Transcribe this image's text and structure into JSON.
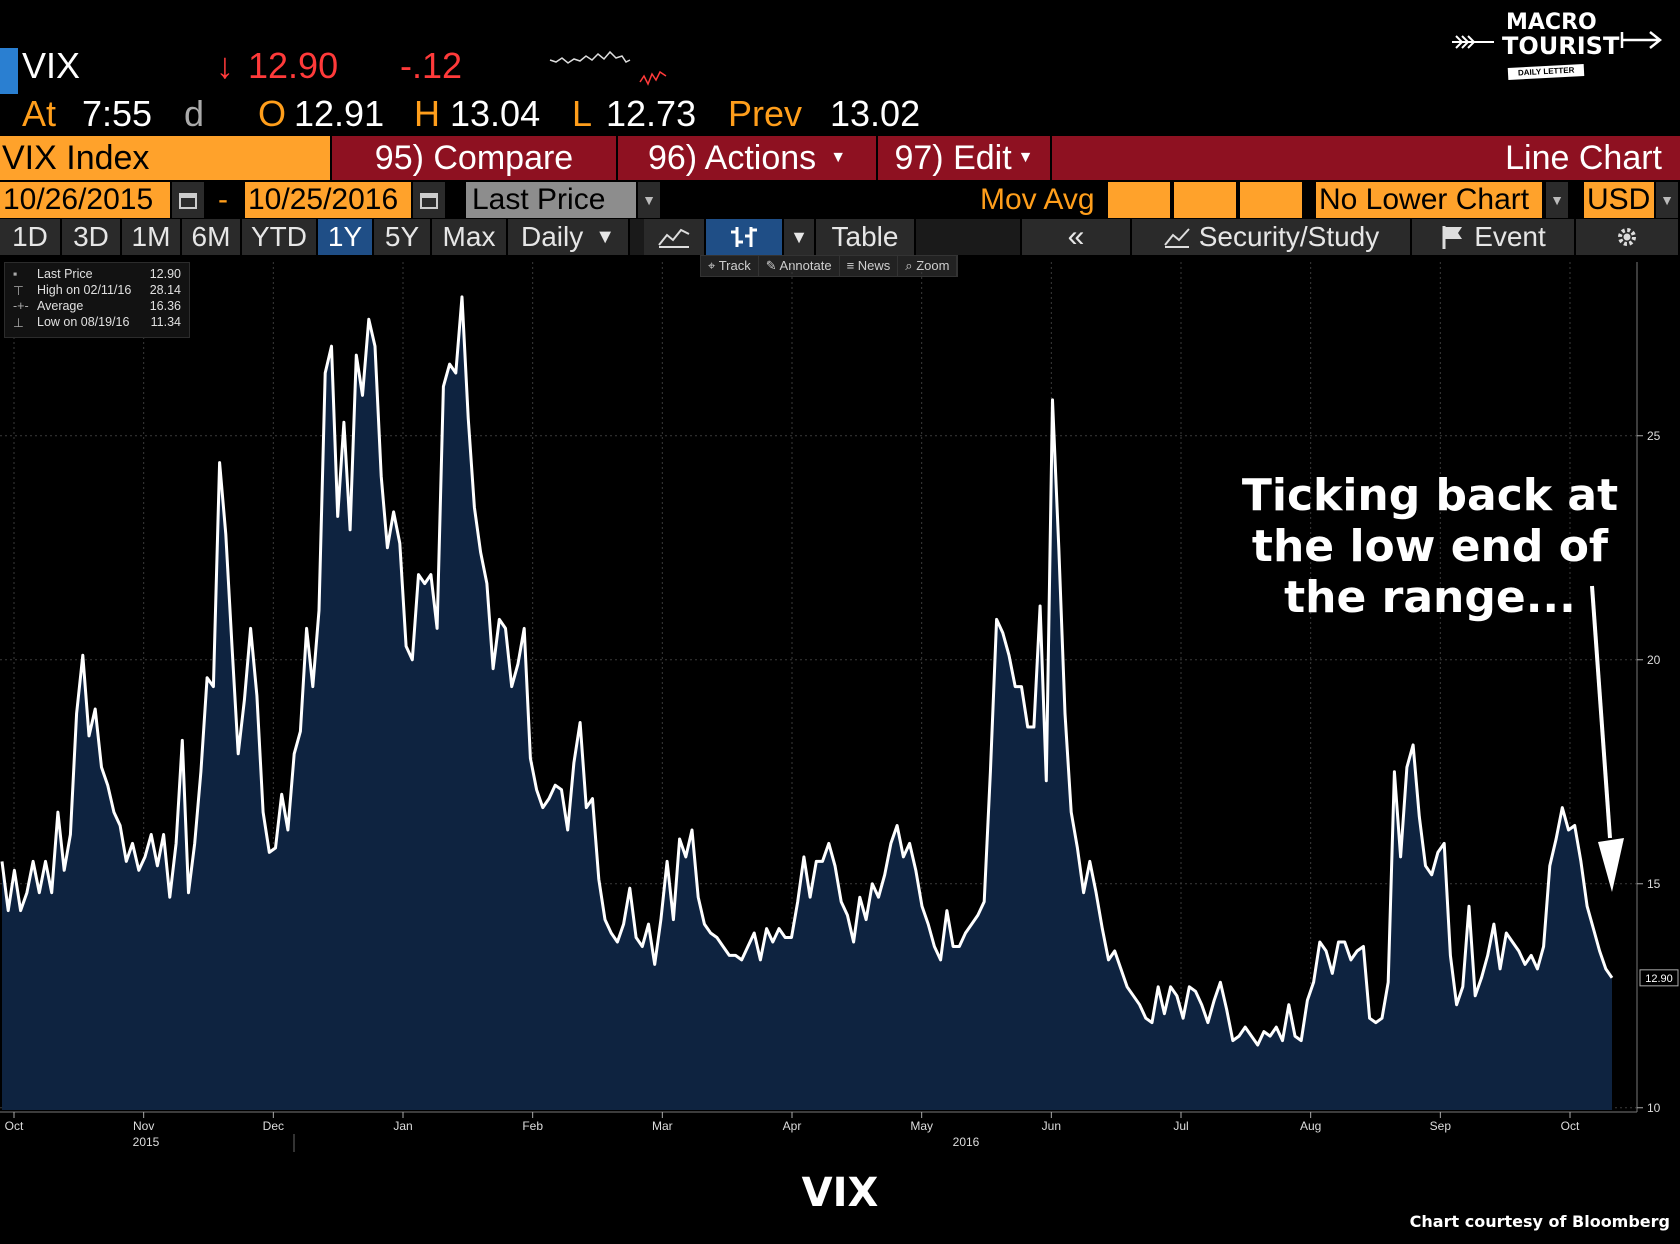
{
  "header": {
    "ticker": "VIX",
    "arrow": "↓",
    "last": "12.90",
    "change": "-.12",
    "time_label": "At",
    "time": "7:55",
    "time_unit": "d",
    "open_label": "O",
    "open": "12.91",
    "high_label": "H",
    "high": "13.04",
    "low_label": "L",
    "low": "12.73",
    "prev_label": "Prev",
    "prev": "13.02"
  },
  "logo": {
    "line1": "MACRO",
    "line2": "TOURIST",
    "line3": "DAILY LETTER"
  },
  "toolbar": {
    "security": "VIX Index",
    "compare": "95) Compare",
    "actions": "96) Actions",
    "edit": "97) Edit",
    "chart_type": "Line Chart",
    "start_date": "10/26/2015",
    "dash": "-",
    "end_date": "10/25/2016",
    "field": "Last Price",
    "mov_avg": "Mov Avg",
    "lower_chart": "No Lower Chart",
    "currency": "USD",
    "ranges": [
      "1D",
      "3D",
      "1M",
      "6M",
      "YTD",
      "1Y",
      "5Y",
      "Max"
    ],
    "active_range": "1Y",
    "frequency": "Daily",
    "table": "Table",
    "security_study": "Security/Study",
    "event": "Event",
    "tools": [
      "Track",
      "Annotate",
      "News",
      "Zoom"
    ]
  },
  "legend": {
    "rows": [
      {
        "label": "Last Price",
        "value": "12.90"
      },
      {
        "label": "High on 02/11/16",
        "value": "28.14"
      },
      {
        "label": "Average",
        "value": "16.36"
      },
      {
        "label": "Low on 08/19/16",
        "value": "11.34"
      }
    ]
  },
  "annotation": {
    "lines": [
      "Ticking back at",
      "the low end of",
      "the range..."
    ]
  },
  "footer": {
    "title": "VIX",
    "credit": "Chart courtesy of Bloomberg"
  },
  "chart_data": {
    "type": "area",
    "title": "VIX",
    "x_tick_labels": [
      "Oct",
      "Nov",
      "Dec",
      "Jan",
      "Feb",
      "Mar",
      "Apr",
      "May",
      "Jun",
      "Jul",
      "Aug",
      "Sep",
      "Oct"
    ],
    "x_year_labels": [
      "2015",
      "2016"
    ],
    "y_ticks": [
      10,
      15,
      20,
      25
    ],
    "ylim": [
      9.95,
      28.7
    ],
    "last_value_label": "12.90",
    "colors": {
      "line": "#ffffff",
      "fill": "#0e2340",
      "grid": "#3a3a3a"
    },
    "series": [
      {
        "name": "Last Price",
        "values": [
          15.5,
          14.4,
          15.3,
          14.4,
          14.8,
          15.5,
          14.8,
          15.5,
          14.8,
          16.6,
          15.3,
          16.1,
          18.8,
          20.1,
          18.3,
          18.9,
          17.6,
          17.2,
          16.6,
          16.3,
          15.5,
          15.9,
          15.3,
          15.6,
          16.1,
          15.4,
          16.1,
          14.7,
          15.9,
          18.2,
          14.8,
          15.9,
          17.5,
          19.6,
          19.4,
          24.4,
          22.8,
          20.3,
          17.9,
          19.1,
          20.7,
          19.2,
          16.6,
          15.7,
          15.8,
          17.0,
          16.2,
          17.9,
          18.4,
          20.7,
          19.4,
          21.1,
          26.4,
          27.0,
          23.2,
          25.3,
          22.9,
          26.8,
          25.9,
          27.6,
          27.0,
          24.1,
          22.5,
          23.3,
          22.6,
          20.3,
          20.0,
          21.9,
          21.7,
          21.9,
          20.7,
          26.1,
          26.6,
          26.4,
          28.1,
          25.4,
          23.4,
          22.4,
          21.7,
          19.8,
          20.9,
          20.7,
          19.4,
          19.9,
          20.7,
          17.8,
          17.1,
          16.7,
          16.9,
          17.2,
          17.1,
          16.2,
          17.7,
          18.6,
          16.7,
          16.9,
          15.1,
          14.2,
          13.9,
          13.7,
          14.1,
          14.9,
          13.8,
          13.6,
          14.1,
          13.2,
          14.2,
          15.5,
          14.2,
          16.0,
          15.6,
          16.2,
          14.7,
          14.1,
          13.9,
          13.8,
          13.6,
          13.4,
          13.4,
          13.3,
          13.6,
          13.9,
          13.3,
          14.0,
          13.7,
          14.0,
          13.8,
          13.8,
          14.6,
          15.6,
          14.7,
          15.5,
          15.5,
          15.9,
          15.4,
          14.6,
          14.3,
          13.7,
          14.7,
          14.2,
          15.0,
          14.7,
          15.2,
          15.9,
          16.3,
          15.6,
          15.9,
          15.3,
          14.5,
          14.1,
          13.6,
          13.3,
          14.4,
          13.6,
          13.6,
          13.9,
          14.1,
          14.3,
          14.6,
          17.5,
          20.9,
          20.6,
          20.1,
          19.4,
          19.4,
          18.5,
          18.5,
          21.2,
          17.3,
          25.8,
          22.5,
          18.8,
          16.6,
          15.8,
          14.8,
          15.5,
          14.8,
          14.0,
          13.3,
          13.5,
          13.1,
          12.7,
          12.5,
          12.3,
          12.0,
          11.9,
          12.7,
          12.1,
          12.7,
          12.5,
          12.0,
          12.7,
          12.6,
          12.3,
          11.9,
          12.4,
          12.8,
          12.2,
          11.5,
          11.6,
          11.8,
          11.6,
          11.4,
          11.7,
          11.6,
          11.8,
          11.5,
          12.3,
          11.6,
          11.5,
          12.4,
          12.8,
          13.7,
          13.5,
          13.0,
          13.7,
          13.7,
          13.3,
          13.5,
          13.6,
          12.0,
          11.9,
          12.0,
          12.8,
          17.5,
          15.6,
          17.6,
          18.1,
          16.5,
          15.4,
          15.2,
          15.7,
          15.9,
          13.4,
          12.3,
          12.7,
          14.5,
          12.5,
          12.9,
          13.4,
          14.1,
          13.1,
          13.9,
          13.7,
          13.5,
          13.2,
          13.4,
          13.1,
          13.6,
          15.4,
          16.0,
          16.7,
          16.2,
          16.3,
          15.5,
          14.5,
          14.0,
          13.5,
          13.1,
          12.9
        ]
      }
    ]
  }
}
